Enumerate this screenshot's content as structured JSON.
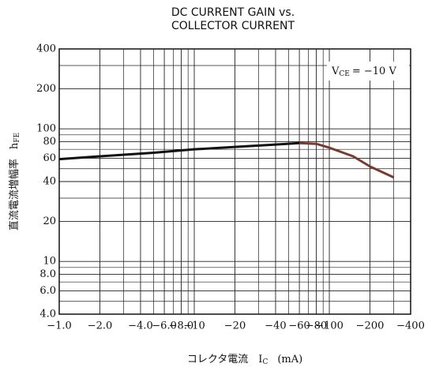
{
  "chart_data": {
    "type": "line",
    "title": [
      "DC CURRENT GAIN vs.",
      "COLLECTOR CURRENT"
    ],
    "x_label": "コレクタ電流　I",
    "x_label_sub": "C",
    "x_label_unit": "(mA)",
    "y_label": "直流電流増幅率",
    "y_label_symbol": "h",
    "y_label_sub": "FE",
    "annotation": {
      "main": "V",
      "sub": "CE",
      "rest": "= −10  V"
    },
    "log_x": true,
    "log_y": true,
    "grid": true,
    "xlim": [
      -1,
      -400
    ],
    "ylim": [
      4,
      400
    ],
    "xticks": [
      {
        "value": -1,
        "label": "−1.0"
      },
      {
        "value": -2,
        "label": "−2.0"
      },
      {
        "value": -4,
        "label": "−4.0"
      },
      {
        "value": -6,
        "label": "−6.0"
      },
      {
        "value": -8,
        "label": "−8.0"
      },
      {
        "value": -10,
        "label": "−10"
      },
      {
        "value": -20,
        "label": "−20"
      },
      {
        "value": -40,
        "label": "−40"
      },
      {
        "value": -60,
        "label": "−60"
      },
      {
        "value": -80,
        "label": "−80"
      },
      {
        "value": -100,
        "label": "−100"
      },
      {
        "value": -200,
        "label": "−200"
      },
      {
        "value": -400,
        "label": "−400"
      }
    ],
    "xminorticks": [
      -3,
      -5,
      -7,
      -9,
      -30,
      -50,
      -70,
      -90,
      -300
    ],
    "yticks": [
      {
        "value": 4,
        "label": "4.0"
      },
      {
        "value": 6,
        "label": "6.0"
      },
      {
        "value": 8,
        "label": "8.0"
      },
      10,
      20,
      40,
      60,
      80,
      100,
      200,
      400
    ],
    "yminorticks": [
      5,
      7,
      9,
      30,
      50,
      70,
      90,
      300
    ],
    "x": [
      -1,
      -2,
      -5,
      -10,
      -20,
      -40,
      -60,
      -80,
      -100,
      -150,
      -200,
      -300
    ],
    "series": [
      {
        "color": "#111111",
        "values": [
          59,
          62,
          66,
          70,
          73,
          76,
          78,
          null,
          null,
          null,
          null,
          null
        ]
      },
      {
        "color": "#7a3b2e",
        "values": [
          null,
          null,
          null,
          null,
          null,
          null,
          78,
          77,
          72,
          62,
          52,
          43
        ]
      }
    ]
  }
}
